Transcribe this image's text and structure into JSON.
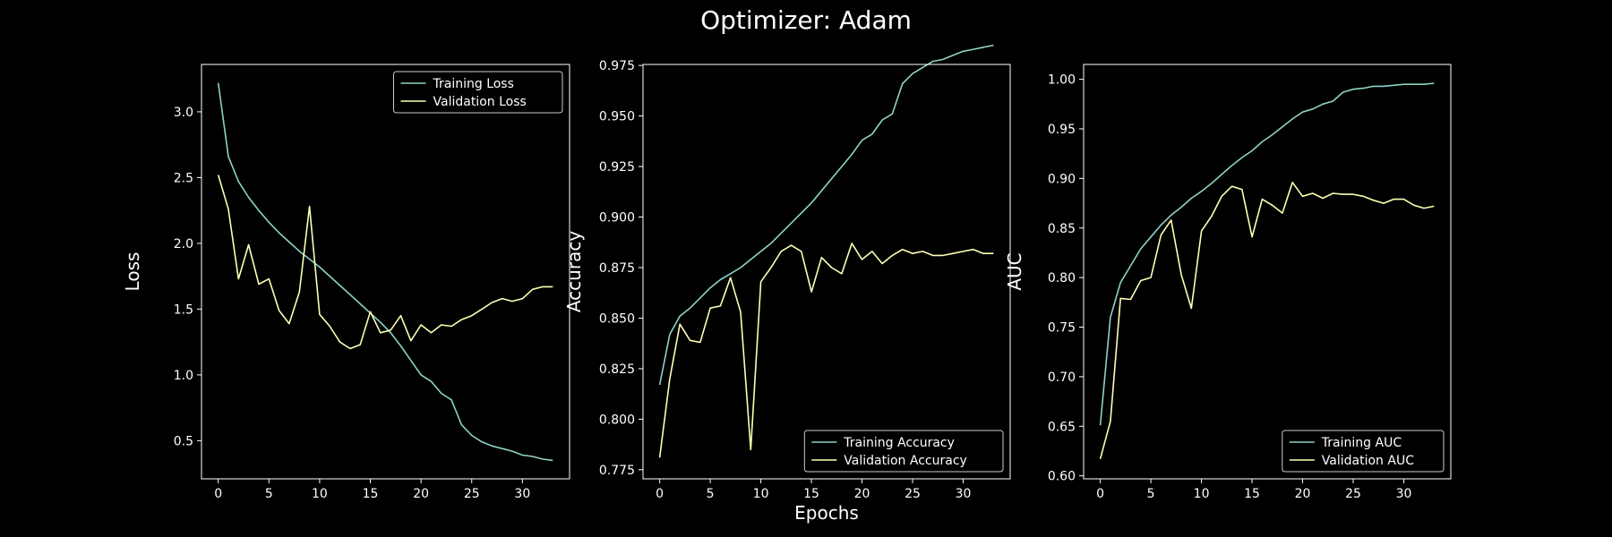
{
  "figure": {
    "title": "Optimizer: Adam"
  },
  "colors": {
    "training": "#8dd3c7",
    "validation": "#feffb3",
    "axes": "#ffffff",
    "background": "#000000"
  },
  "chart_data": [
    {
      "type": "line",
      "title": "",
      "xlabel": "",
      "ylabel": "Loss",
      "xlim": [
        -1.65,
        34.65
      ],
      "ylim": [
        0.21,
        3.36
      ],
      "xticks": [
        0,
        5,
        10,
        15,
        20,
        25,
        30
      ],
      "yticks": [
        0.5,
        1.0,
        1.5,
        2.0,
        2.5,
        3.0
      ],
      "ytick_labels": [
        "0.5",
        "1.0",
        "1.5",
        "2.0",
        "2.5",
        "3.0"
      ],
      "legend": "upper right",
      "grid": false,
      "x": [
        0,
        1,
        2,
        3,
        4,
        5,
        6,
        7,
        8,
        9,
        10,
        11,
        12,
        13,
        14,
        15,
        16,
        17,
        18,
        19,
        20,
        21,
        22,
        23,
        24,
        25,
        26,
        27,
        28,
        29,
        30,
        31,
        32,
        33
      ],
      "series": [
        {
          "name": "Training Loss",
          "color": "#8dd3c7",
          "values": [
            3.22,
            2.66,
            2.47,
            2.35,
            2.25,
            2.16,
            2.08,
            2.01,
            1.94,
            1.88,
            1.82,
            1.75,
            1.68,
            1.61,
            1.54,
            1.47,
            1.4,
            1.32,
            1.22,
            1.11,
            1.0,
            0.95,
            0.86,
            0.81,
            0.62,
            0.54,
            0.49,
            0.46,
            0.44,
            0.42,
            0.39,
            0.38,
            0.36,
            0.35
          ]
        },
        {
          "name": "Validation Loss",
          "color": "#feffb3",
          "values": [
            2.52,
            2.26,
            1.73,
            1.99,
            1.69,
            1.73,
            1.49,
            1.39,
            1.63,
            2.28,
            1.46,
            1.37,
            1.25,
            1.2,
            1.23,
            1.48,
            1.32,
            1.34,
            1.45,
            1.26,
            1.38,
            1.32,
            1.38,
            1.37,
            1.42,
            1.45,
            1.5,
            1.55,
            1.58,
            1.56,
            1.58,
            1.65,
            1.67,
            1.67
          ]
        }
      ]
    },
    {
      "type": "line",
      "title": "",
      "xlabel": "Epochs",
      "ylabel": "Accuracy",
      "xlim": [
        -1.65,
        34.65
      ],
      "ylim": [
        0.7705,
        0.9755
      ],
      "xticks": [
        0,
        5,
        10,
        15,
        20,
        25,
        30
      ],
      "yticks": [
        0.775,
        0.8,
        0.825,
        0.85,
        0.875,
        0.9,
        0.925,
        0.95,
        0.975
      ],
      "ytick_labels": [
        "0.775",
        "0.800",
        "0.825",
        "0.850",
        "0.875",
        "0.900",
        "0.925",
        "0.950",
        "0.975"
      ],
      "legend": "lower right",
      "grid": false,
      "x": [
        0,
        1,
        2,
        3,
        4,
        5,
        6,
        7,
        8,
        9,
        10,
        11,
        12,
        13,
        14,
        15,
        16,
        17,
        18,
        19,
        20,
        21,
        22,
        23,
        24,
        25,
        26,
        27,
        28,
        29,
        30,
        31,
        32,
        33
      ],
      "series": [
        {
          "name": "Training Accuracy",
          "color": "#8dd3c7",
          "values": [
            0.817,
            0.842,
            0.851,
            0.855,
            0.86,
            0.865,
            0.869,
            0.872,
            0.875,
            0.879,
            0.883,
            0.887,
            0.892,
            0.897,
            0.902,
            0.907,
            0.913,
            0.919,
            0.925,
            0.931,
            0.938,
            0.941,
            0.948,
            0.951,
            0.966,
            0.971,
            0.974,
            0.977,
            0.978,
            0.98,
            0.982,
            0.983,
            0.984,
            0.985
          ]
        },
        {
          "name": "Validation Accuracy",
          "color": "#feffb3",
          "values": [
            0.781,
            0.82,
            0.847,
            0.839,
            0.838,
            0.855,
            0.856,
            0.87,
            0.853,
            0.785,
            0.868,
            0.875,
            0.883,
            0.886,
            0.883,
            0.863,
            0.88,
            0.875,
            0.872,
            0.887,
            0.879,
            0.883,
            0.877,
            0.881,
            0.884,
            0.882,
            0.883,
            0.881,
            0.881,
            0.882,
            0.883,
            0.884,
            0.882,
            0.882
          ]
        }
      ]
    },
    {
      "type": "line",
      "title": "",
      "xlabel": "",
      "ylabel": "AUC",
      "xlim": [
        -1.65,
        34.65
      ],
      "ylim": [
        0.597,
        1.015
      ],
      "xticks": [
        0,
        5,
        10,
        15,
        20,
        25,
        30
      ],
      "yticks": [
        0.6,
        0.65,
        0.7,
        0.75,
        0.8,
        0.85,
        0.9,
        0.95,
        1.0
      ],
      "ytick_labels": [
        "0.60",
        "0.65",
        "0.70",
        "0.75",
        "0.80",
        "0.85",
        "0.90",
        "0.95",
        "1.00"
      ],
      "legend": "lower right",
      "grid": false,
      "x": [
        0,
        1,
        2,
        3,
        4,
        5,
        6,
        7,
        8,
        9,
        10,
        11,
        12,
        13,
        14,
        15,
        16,
        17,
        18,
        19,
        20,
        21,
        22,
        23,
        24,
        25,
        26,
        27,
        28,
        29,
        30,
        31,
        32,
        33
      ],
      "series": [
        {
          "name": "Training AUC",
          "color": "#8dd3c7",
          "values": [
            0.651,
            0.76,
            0.795,
            0.812,
            0.829,
            0.841,
            0.853,
            0.863,
            0.871,
            0.88,
            0.887,
            0.895,
            0.904,
            0.913,
            0.921,
            0.928,
            0.937,
            0.944,
            0.952,
            0.96,
            0.967,
            0.97,
            0.975,
            0.978,
            0.987,
            0.99,
            0.991,
            0.993,
            0.993,
            0.994,
            0.995,
            0.995,
            0.995,
            0.996
          ]
        },
        {
          "name": "Validation AUC",
          "color": "#feffb3",
          "values": [
            0.617,
            0.655,
            0.779,
            0.778,
            0.797,
            0.8,
            0.843,
            0.858,
            0.803,
            0.769,
            0.847,
            0.862,
            0.882,
            0.892,
            0.889,
            0.841,
            0.879,
            0.873,
            0.865,
            0.896,
            0.882,
            0.885,
            0.88,
            0.885,
            0.884,
            0.884,
            0.882,
            0.878,
            0.875,
            0.879,
            0.879,
            0.873,
            0.87,
            0.872
          ]
        }
      ]
    }
  ]
}
